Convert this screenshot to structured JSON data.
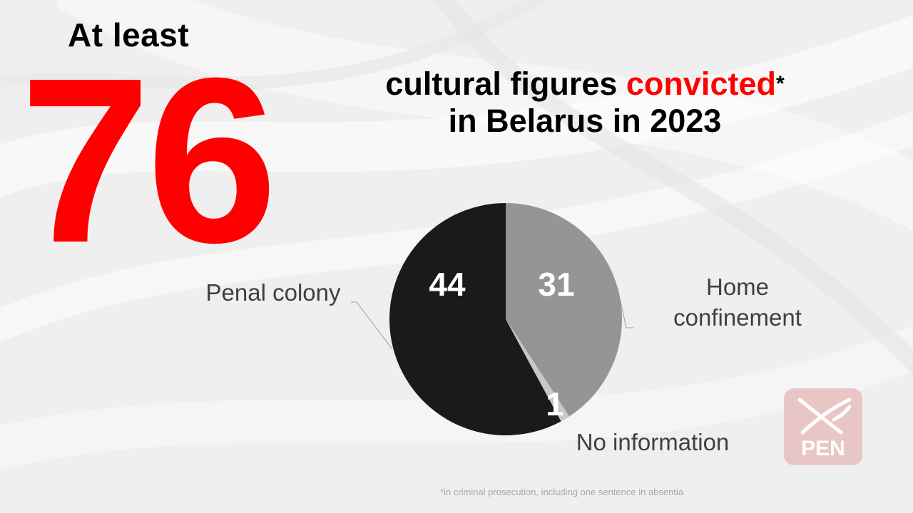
{
  "header": {
    "at_least": "At least",
    "total": "76",
    "headline_part1": "cultural figures ",
    "headline_red": "convicted",
    "headline_star": "*",
    "headline_line2": "in Belarus in 2023"
  },
  "footnote": "*in criminal prosecution, including one sentence in absentia",
  "logo": {
    "text": "PEN",
    "icon": "sabre-and-quill-icon",
    "color": "#e8c4c4"
  },
  "colors": {
    "accent": "#ff0000"
  },
  "chart_data": {
    "type": "pie",
    "slices": [
      {
        "label": "Home confinement",
        "value": 31,
        "color": "#969494"
      },
      {
        "label": "No information",
        "value": 1,
        "color": "#c8c8c8"
      },
      {
        "label": "Penal colony",
        "value": 44,
        "color": "#1b191a"
      }
    ],
    "data_labels": [
      "31",
      "1",
      "44"
    ],
    "category_labels": [
      "Home\nconfinement",
      "No information",
      "Penal colony"
    ],
    "start": "12 o'clock, clockwise"
  }
}
